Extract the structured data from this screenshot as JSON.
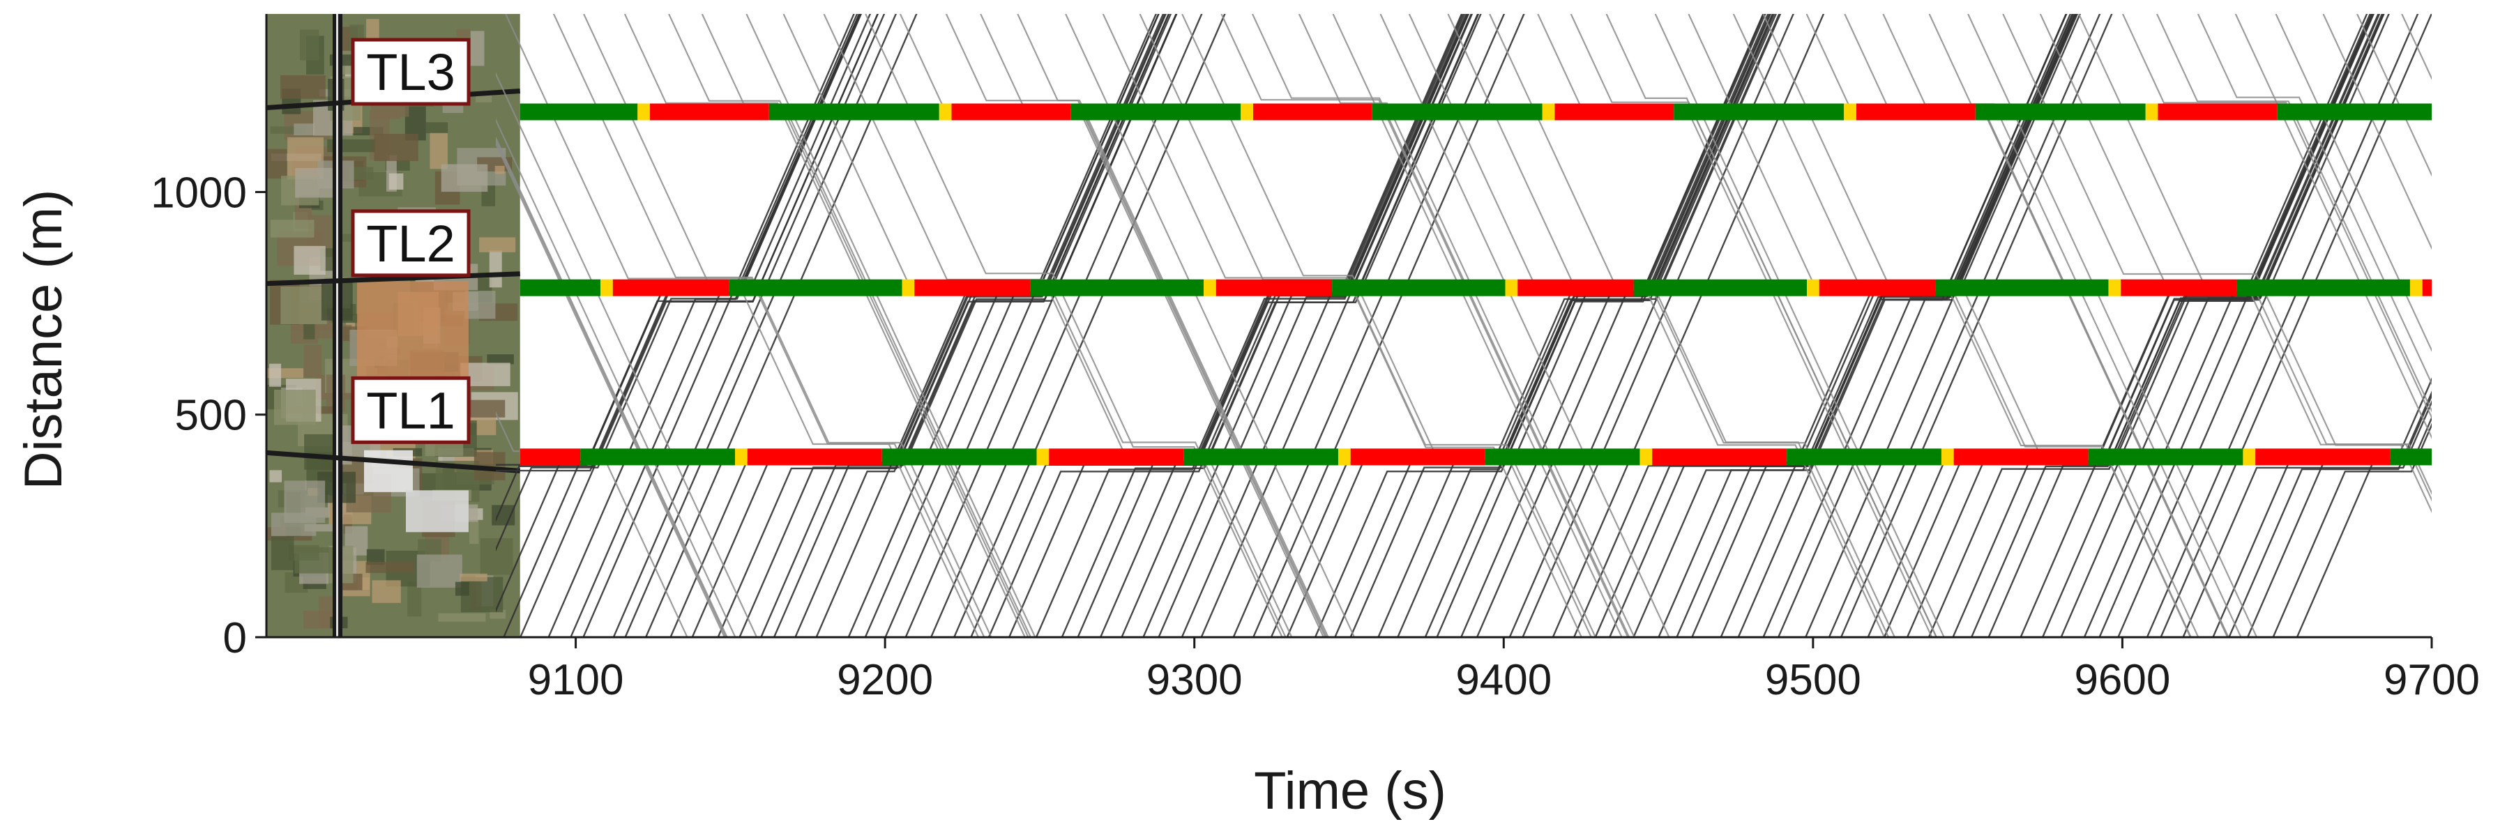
{
  "chart_data": {
    "type": "line",
    "title": "",
    "xlabel": "Time (s)",
    "ylabel": "Distance (m)",
    "xlim": [
      9000,
      9700
    ],
    "ylim": [
      0,
      1400
    ],
    "xticks": [
      9100,
      9200,
      9300,
      9400,
      9500,
      9600,
      9700
    ],
    "yticks": [
      0,
      500,
      1000
    ],
    "grid": false,
    "map_inset": {
      "x_range": [
        9000,
        9082
      ],
      "caption": ""
    },
    "signals": [
      {
        "name": "TL1",
        "distance": 405,
        "cycle": 97.5,
        "green": 50,
        "yellow": 4,
        "offset": 9004
      },
      {
        "name": "TL2",
        "distance": 785,
        "cycle": 97.5,
        "green": 56,
        "yellow": 4,
        "offset": 9052
      },
      {
        "name": "TL3",
        "distance": 1180,
        "cycle": 97.5,
        "green": 55,
        "yellow": 4,
        "offset": 9065
      }
    ],
    "signal_colors": {
      "green": "#008000",
      "yellow": "#ffd700",
      "red": "#ff0000"
    },
    "trajectory_colors": {
      "northbound": "#333333",
      "southbound": "#8c8c8c"
    },
    "trajectories": {
      "northbound_free_speed": 16,
      "southbound_free_speed": 15,
      "northbound_count": 90,
      "southbound_count": 55
    }
  }
}
